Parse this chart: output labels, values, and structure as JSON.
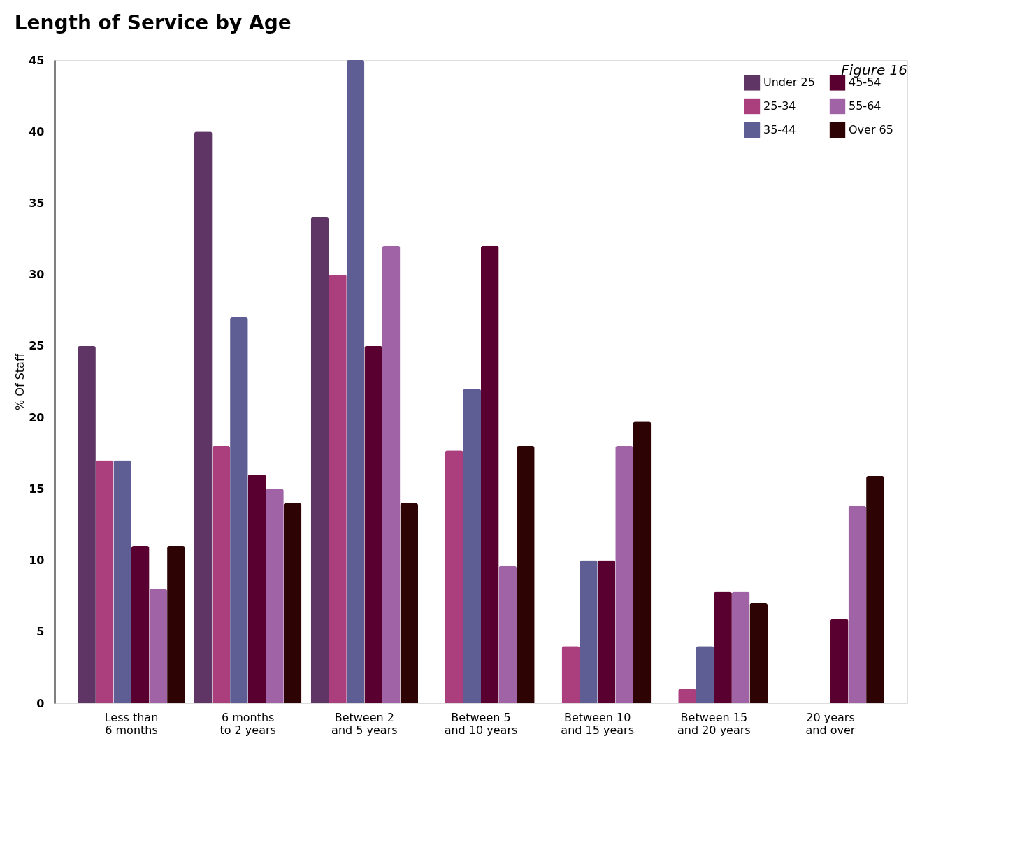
{
  "chart_data": {
    "type": "bar",
    "title": "Length of Service by Age",
    "ylabel": "% Of Staff",
    "annotations": [
      "Figure 16"
    ],
    "categories": [
      "Less than\n6 months",
      "6 months\nto 2 years",
      "Between 2\nand 5 years",
      "Between 5\nand 10 years",
      "Between 10\nand 15 years",
      "Between 15\nand 20 years",
      "20 years\nand over"
    ],
    "series": [
      {
        "name": "Under 25",
        "color": "#5e3564",
        "values": [
          25,
          40,
          34,
          null,
          null,
          null,
          null
        ]
      },
      {
        "name": "25-34",
        "color": "#ab3f7e",
        "values": [
          17,
          18,
          30,
          17.7,
          4,
          1,
          null
        ]
      },
      {
        "name": "35-44",
        "color": "#5f5e94",
        "values": [
          17,
          27,
          45,
          22,
          10,
          4,
          null
        ]
      },
      {
        "name": "45-54",
        "color": "#5a0030",
        "values": [
          11,
          16,
          25,
          32,
          10,
          7.8,
          5.9
        ]
      },
      {
        "name": "55-64",
        "color": "#a063a6",
        "values": [
          8,
          15,
          32,
          9.6,
          18,
          7.8,
          13.8
        ]
      },
      {
        "name": "Over 65",
        "color": "#2e0303",
        "values": [
          11,
          14,
          14,
          18,
          19.7,
          7,
          15.9
        ]
      }
    ],
    "ylim": [
      0,
      45
    ],
    "yticks": [
      0,
      5,
      10,
      15,
      20,
      25,
      30,
      35,
      40,
      45
    ],
    "grid": false,
    "legend": "top right"
  }
}
